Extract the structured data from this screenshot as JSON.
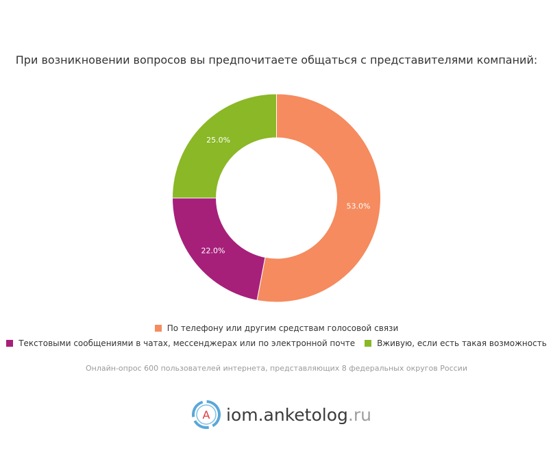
{
  "chart_data": {
    "type": "pie",
    "variant": "donut",
    "title": "При возникновении вопросов вы предпочитаете общаться с представителями компаний:",
    "slices": [
      {
        "label": "По телефону или другим средствам голосовой связи",
        "value": 53.0,
        "display": "53.0%",
        "color": "#f58b5e"
      },
      {
        "label": "Текстовыми сообщениями в чатах, мессенджерах или по электронной почте",
        "value": 22.0,
        "display": "22.0%",
        "color": "#a6207a"
      },
      {
        "label": "Вживую, если есть такая возможность",
        "value": 25.0,
        "display": "25.0%",
        "color": "#8ab826"
      }
    ],
    "legend_position": "bottom"
  },
  "footnote": "Онлайн-опрос 600 пользователей интернета, представляющих 8 федеральных округов России",
  "brand": {
    "name": "iom.anketolog",
    "tld": ".ru",
    "logo_letter": "A",
    "logo_icon": "anketolog-logo-icon"
  }
}
